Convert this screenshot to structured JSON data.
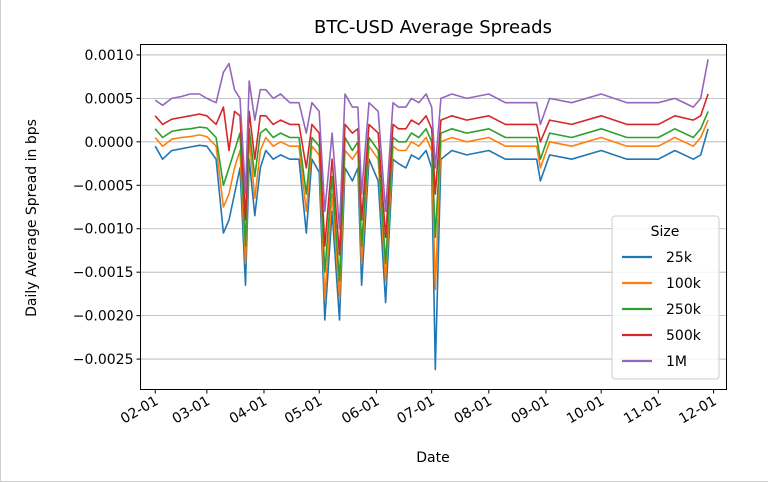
{
  "chart_data": {
    "type": "line",
    "title": "BTC-USD Average Spreads",
    "xlabel": "Date",
    "ylabel": "Daily Average Spread in bps",
    "xlim": [
      "2021-01-24",
      "2021-12-08"
    ],
    "ylim": [
      -0.00285,
      0.00112
    ],
    "x_ticks": [
      "2021-02-01",
      "2021-03-01",
      "2021-04-01",
      "2021-05-01",
      "2021-06-01",
      "2021-07-01",
      "2021-08-01",
      "2021-09-01",
      "2021-10-01",
      "2021-11-01",
      "2021-12-01"
    ],
    "x_tick_labels": [
      "02-01",
      "03-01",
      "04-01",
      "05-01",
      "06-01",
      "07-01",
      "08-01",
      "09-01",
      "10-01",
      "11-01",
      "12-01"
    ],
    "y_ticks": [
      0.001,
      0.0005,
      0.0,
      -0.0005,
      -0.001,
      -0.0015,
      -0.002,
      -0.0025
    ],
    "y_tick_labels": [
      "0.0010",
      "0.0005",
      "0.0000",
      "−0.0005",
      "−0.0010",
      "−0.0015",
      "−0.0020",
      "−0.0025"
    ],
    "grid": "horizontal",
    "legend": {
      "title": "Size",
      "placement": "lower right"
    },
    "series": [
      {
        "name": "25k",
        "color": "#1f77b4",
        "x": [
          "2021-02-01",
          "2021-02-05",
          "2021-02-10",
          "2021-02-15",
          "2021-02-20",
          "2021-02-25",
          "2021-03-01",
          "2021-03-06",
          "2021-03-10",
          "2021-03-13",
          "2021-03-16",
          "2021-03-19",
          "2021-03-22",
          "2021-03-24",
          "2021-03-27",
          "2021-03-30",
          "2021-04-02",
          "2021-04-06",
          "2021-04-10",
          "2021-04-15",
          "2021-04-20",
          "2021-04-24",
          "2021-04-27",
          "2021-05-01",
          "2021-05-04",
          "2021-05-08",
          "2021-05-12",
          "2021-05-15",
          "2021-05-19",
          "2021-05-22",
          "2021-05-24",
          "2021-05-28",
          "2021-06-02",
          "2021-06-06",
          "2021-06-10",
          "2021-06-13",
          "2021-06-17",
          "2021-06-20",
          "2021-06-24",
          "2021-06-28",
          "2021-07-01",
          "2021-07-03",
          "2021-07-06",
          "2021-07-12",
          "2021-07-20",
          "2021-08-01",
          "2021-08-10",
          "2021-08-20",
          "2021-08-27",
          "2021-08-29",
          "2021-09-03",
          "2021-09-15",
          "2021-10-01",
          "2021-10-15",
          "2021-10-25",
          "2021-11-01",
          "2021-11-10",
          "2021-11-20",
          "2021-11-24",
          "2021-11-28"
        ],
        "values": [
          -5e-05,
          -0.0002,
          -0.0001,
          -8e-05,
          -6e-05,
          -4e-05,
          -5e-05,
          -0.0002,
          -0.00105,
          -0.0009,
          -0.0006,
          -0.0003,
          -0.00165,
          -0.0002,
          -0.00085,
          -0.0003,
          -0.0001,
          -0.0002,
          -0.00015,
          -0.0002,
          -0.0002,
          -0.00105,
          -0.0002,
          -0.00035,
          -0.00205,
          -0.0008,
          -0.00205,
          -0.0003,
          -0.00045,
          -0.0003,
          -0.00165,
          -0.0002,
          -0.00045,
          -0.00185,
          -0.0002,
          -0.00025,
          -0.0003,
          -0.00015,
          -0.0002,
          -0.0001,
          -0.0003,
          -0.00262,
          -0.0002,
          -0.0001,
          -0.00015,
          -0.0001,
          -0.0002,
          -0.0002,
          -0.0002,
          -0.00045,
          -0.00015,
          -0.0002,
          -0.0001,
          -0.0002,
          -0.0002,
          -0.0002,
          -0.0001,
          -0.0002,
          -0.00015,
          0.00015
        ]
      },
      {
        "name": "100k",
        "color": "#ff7f0e",
        "x": [
          "2021-02-01",
          "2021-02-05",
          "2021-02-10",
          "2021-02-15",
          "2021-02-20",
          "2021-02-25",
          "2021-03-01",
          "2021-03-06",
          "2021-03-10",
          "2021-03-13",
          "2021-03-16",
          "2021-03-19",
          "2021-03-22",
          "2021-03-24",
          "2021-03-27",
          "2021-03-30",
          "2021-04-02",
          "2021-04-06",
          "2021-04-10",
          "2021-04-15",
          "2021-04-20",
          "2021-04-24",
          "2021-04-27",
          "2021-05-01",
          "2021-05-04",
          "2021-05-08",
          "2021-05-12",
          "2021-05-15",
          "2021-05-19",
          "2021-05-22",
          "2021-05-24",
          "2021-05-28",
          "2021-06-02",
          "2021-06-06",
          "2021-06-10",
          "2021-06-13",
          "2021-06-17",
          "2021-06-20",
          "2021-06-24",
          "2021-06-28",
          "2021-07-01",
          "2021-07-03",
          "2021-07-06",
          "2021-07-12",
          "2021-07-20",
          "2021-08-01",
          "2021-08-10",
          "2021-08-20",
          "2021-08-27",
          "2021-08-29",
          "2021-09-03",
          "2021-09-15",
          "2021-10-01",
          "2021-10-15",
          "2021-10-25",
          "2021-11-01",
          "2021-11-10",
          "2021-11-20",
          "2021-11-24",
          "2021-11-28"
        ],
        "values": [
          5e-05,
          -5e-05,
          3e-05,
          5e-05,
          6e-05,
          8e-05,
          6e-05,
          -5e-05,
          -0.00075,
          -0.0006,
          -0.0003,
          -0.0001,
          -0.0014,
          5e-05,
          -0.00065,
          -0.0001,
          5e-05,
          -5e-05,
          0.0,
          -5e-05,
          -5e-05,
          -0.0008,
          -5e-05,
          -0.00015,
          -0.0018,
          -0.0006,
          -0.0018,
          -0.0001,
          -0.0002,
          -0.0001,
          -0.0014,
          -5e-05,
          -0.0002,
          -0.0016,
          -5e-05,
          -0.0001,
          -0.0001,
          0.0,
          -5e-05,
          5e-05,
          -0.0001,
          -0.0017,
          0.0,
          5e-05,
          0.0,
          5e-05,
          -5e-05,
          -5e-05,
          -5e-05,
          -0.0003,
          0.0,
          -5e-05,
          5e-05,
          -5e-05,
          -5e-05,
          -5e-05,
          5e-05,
          -5e-05,
          5e-05,
          0.00025
        ]
      },
      {
        "name": "250k",
        "color": "#2ca02c",
        "x": [
          "2021-02-01",
          "2021-02-05",
          "2021-02-10",
          "2021-02-15",
          "2021-02-20",
          "2021-02-25",
          "2021-03-01",
          "2021-03-06",
          "2021-03-10",
          "2021-03-13",
          "2021-03-16",
          "2021-03-19",
          "2021-03-22",
          "2021-03-24",
          "2021-03-27",
          "2021-03-30",
          "2021-04-02",
          "2021-04-06",
          "2021-04-10",
          "2021-04-15",
          "2021-04-20",
          "2021-04-24",
          "2021-04-27",
          "2021-05-01",
          "2021-05-04",
          "2021-05-08",
          "2021-05-12",
          "2021-05-15",
          "2021-05-19",
          "2021-05-22",
          "2021-05-24",
          "2021-05-28",
          "2021-06-02",
          "2021-06-06",
          "2021-06-10",
          "2021-06-13",
          "2021-06-17",
          "2021-06-20",
          "2021-06-24",
          "2021-06-28",
          "2021-07-01",
          "2021-07-03",
          "2021-07-06",
          "2021-07-12",
          "2021-07-20",
          "2021-08-01",
          "2021-08-10",
          "2021-08-20",
          "2021-08-27",
          "2021-08-29",
          "2021-09-03",
          "2021-09-15",
          "2021-10-01",
          "2021-10-15",
          "2021-10-25",
          "2021-11-01",
          "2021-11-10",
          "2021-11-20",
          "2021-11-24",
          "2021-11-28"
        ],
        "values": [
          0.00015,
          5e-05,
          0.00012,
          0.00014,
          0.00015,
          0.00017,
          0.00016,
          5e-05,
          -0.0005,
          -0.0003,
          -0.0001,
          0.0001,
          -0.0012,
          0.00015,
          -0.0004,
          0.0001,
          0.00015,
          5e-05,
          0.0001,
          5e-05,
          5e-05,
          -0.0006,
          5e-05,
          -5e-05,
          -0.0015,
          -0.0004,
          -0.0016,
          5e-05,
          -0.0001,
          0.0,
          -0.0012,
          5e-05,
          -0.0001,
          -0.0014,
          5e-05,
          0.0,
          0.0,
          0.0001,
          5e-05,
          0.00015,
          0.0,
          -0.0011,
          0.0001,
          0.00015,
          0.0001,
          0.00015,
          5e-05,
          5e-05,
          5e-05,
          -0.0002,
          0.0001,
          5e-05,
          0.00015,
          5e-05,
          5e-05,
          5e-05,
          0.00015,
          5e-05,
          0.00015,
          0.00035
        ]
      },
      {
        "name": "500k",
        "color": "#d62728",
        "x": [
          "2021-02-01",
          "2021-02-05",
          "2021-02-10",
          "2021-02-15",
          "2021-02-20",
          "2021-02-25",
          "2021-03-01",
          "2021-03-06",
          "2021-03-10",
          "2021-03-13",
          "2021-03-16",
          "2021-03-19",
          "2021-03-22",
          "2021-03-24",
          "2021-03-27",
          "2021-03-30",
          "2021-04-02",
          "2021-04-06",
          "2021-04-10",
          "2021-04-15",
          "2021-04-20",
          "2021-04-24",
          "2021-04-27",
          "2021-05-01",
          "2021-05-04",
          "2021-05-08",
          "2021-05-12",
          "2021-05-15",
          "2021-05-19",
          "2021-05-22",
          "2021-05-24",
          "2021-05-28",
          "2021-06-02",
          "2021-06-06",
          "2021-06-10",
          "2021-06-13",
          "2021-06-17",
          "2021-06-20",
          "2021-06-24",
          "2021-06-28",
          "2021-07-01",
          "2021-07-03",
          "2021-07-06",
          "2021-07-12",
          "2021-07-20",
          "2021-08-01",
          "2021-08-10",
          "2021-08-20",
          "2021-08-27",
          "2021-08-29",
          "2021-09-03",
          "2021-09-15",
          "2021-10-01",
          "2021-10-15",
          "2021-10-25",
          "2021-11-01",
          "2021-11-10",
          "2021-11-20",
          "2021-11-24",
          "2021-11-28"
        ],
        "values": [
          0.0003,
          0.0002,
          0.00026,
          0.00028,
          0.0003,
          0.00032,
          0.0003,
          0.0002,
          0.0004,
          -0.0001,
          0.00035,
          0.0003,
          -0.0009,
          0.00035,
          -0.0002,
          0.0003,
          0.0003,
          0.0002,
          0.00025,
          0.0002,
          0.0002,
          -0.0003,
          0.0002,
          0.0001,
          -0.0012,
          -0.0002,
          -0.0013,
          0.0002,
          0.0001,
          0.00015,
          -0.0009,
          0.0002,
          0.0001,
          -0.0011,
          0.0002,
          0.00015,
          0.00015,
          0.00025,
          0.0002,
          0.0003,
          0.00015,
          -0.0006,
          0.00025,
          0.0003,
          0.00025,
          0.0003,
          0.0002,
          0.0002,
          0.0002,
          0.0,
          0.00025,
          0.0002,
          0.0003,
          0.0002,
          0.0002,
          0.0002,
          0.0003,
          0.00025,
          0.0003,
          0.00055
        ]
      },
      {
        "name": "1M",
        "color": "#9467bd",
        "x": [
          "2021-02-01",
          "2021-02-05",
          "2021-02-10",
          "2021-02-15",
          "2021-02-20",
          "2021-02-25",
          "2021-03-01",
          "2021-03-06",
          "2021-03-10",
          "2021-03-13",
          "2021-03-16",
          "2021-03-19",
          "2021-03-22",
          "2021-03-24",
          "2021-03-27",
          "2021-03-30",
          "2021-04-02",
          "2021-04-06",
          "2021-04-10",
          "2021-04-15",
          "2021-04-20",
          "2021-04-24",
          "2021-04-27",
          "2021-05-01",
          "2021-05-04",
          "2021-05-08",
          "2021-05-12",
          "2021-05-15",
          "2021-05-19",
          "2021-05-22",
          "2021-05-24",
          "2021-05-28",
          "2021-06-02",
          "2021-06-06",
          "2021-06-10",
          "2021-06-13",
          "2021-06-17",
          "2021-06-20",
          "2021-06-24",
          "2021-06-28",
          "2021-07-01",
          "2021-07-03",
          "2021-07-06",
          "2021-07-12",
          "2021-07-20",
          "2021-08-01",
          "2021-08-10",
          "2021-08-20",
          "2021-08-27",
          "2021-08-29",
          "2021-09-03",
          "2021-09-15",
          "2021-10-01",
          "2021-10-15",
          "2021-10-25",
          "2021-11-01",
          "2021-11-10",
          "2021-11-20",
          "2021-11-24",
          "2021-11-28"
        ],
        "values": [
          0.00048,
          0.00042,
          0.0005,
          0.00052,
          0.00055,
          0.00055,
          0.0005,
          0.00045,
          0.0008,
          0.0009,
          0.0006,
          0.0005,
          -0.0006,
          0.0007,
          0.00025,
          0.0006,
          0.0006,
          0.0005,
          0.00055,
          0.00045,
          0.00045,
          0.0001,
          0.00045,
          0.00035,
          -0.0008,
          0.0001,
          -0.001,
          0.00055,
          0.0004,
          0.0004,
          -0.0006,
          0.00045,
          0.00035,
          -0.0008,
          0.00045,
          0.0004,
          0.0004,
          0.0005,
          0.00045,
          0.00055,
          0.0004,
          -0.0003,
          0.0005,
          0.00055,
          0.0005,
          0.00055,
          0.00045,
          0.00045,
          0.00045,
          0.0002,
          0.0005,
          0.00045,
          0.00055,
          0.00045,
          0.00045,
          0.00045,
          0.0005,
          0.0004,
          0.0005,
          0.00095
        ]
      }
    ]
  }
}
